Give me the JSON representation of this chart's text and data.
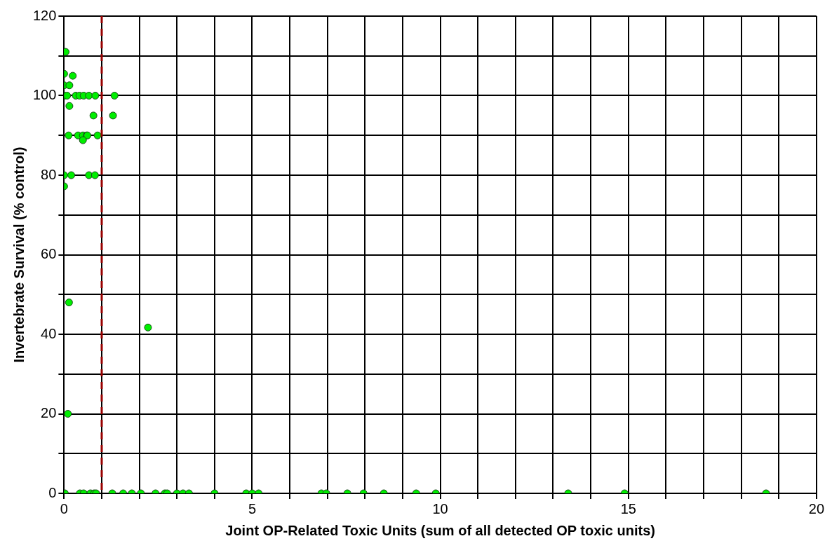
{
  "chart_data": {
    "type": "scatter",
    "xlabel": "Joint OP-Related Toxic Units (sum of all detected OP toxic units)",
    "ylabel": "Invertebrate Survival (% control)",
    "xlim": [
      0,
      20
    ],
    "ylim": [
      0,
      120
    ],
    "xticks": [
      0,
      {
        "value": 1,
        "label": null
      },
      {
        "value": 2,
        "label": null
      },
      {
        "value": 3,
        "label": null
      },
      {
        "value": 4,
        "label": null
      },
      5,
      {
        "value": 6,
        "label": null
      },
      {
        "value": 7,
        "label": null
      },
      {
        "value": 8,
        "label": null
      },
      {
        "value": 9,
        "label": null
      },
      10,
      {
        "value": 11,
        "label": null
      },
      {
        "value": 12,
        "label": null
      },
      {
        "value": 13,
        "label": null
      },
      {
        "value": 14,
        "label": null
      },
      15,
      {
        "value": 16,
        "label": null
      },
      {
        "value": 17,
        "label": null
      },
      {
        "value": 18,
        "label": null
      },
      {
        "value": 19,
        "label": null
      },
      20
    ],
    "yticks": [
      0,
      {
        "value": 10,
        "label": null
      },
      20,
      {
        "value": 30,
        "label": null
      },
      40,
      {
        "value": 50,
        "label": null
      },
      60,
      {
        "value": 70,
        "label": null
      },
      80,
      {
        "value": 90,
        "label": null
      },
      100,
      {
        "value": 110,
        "label": null
      },
      120
    ],
    "grid": true,
    "legend": false,
    "marker": "circle",
    "ref_lines": [
      {
        "axis": "x",
        "value": 1,
        "color": "#990000",
        "line_style": "dashed"
      }
    ],
    "series": [
      {
        "color": "#00ee00",
        "x": [
          0,
          0.04,
          0,
          0.23,
          0,
          0.14,
          0,
          0.08,
          0.31,
          0.41,
          0.52,
          0.66,
          0.83,
          1.34,
          0.14,
          0.78,
          1.3,
          0.12,
          0.37,
          0.5,
          0.6,
          0.62,
          0.89,
          0.5,
          0,
          0.19,
          0.66,
          0.82,
          0,
          0.13,
          2.23,
          0.1,
          0.02,
          0.42,
          0.52,
          0.7,
          0.8,
          0.85,
          1.28,
          1.57,
          1.8,
          2.04,
          2.43,
          2.68,
          2.74,
          3.0,
          3.16,
          3.32,
          4.0,
          4.84,
          5.0,
          5.17,
          6.84,
          6.97,
          7.53,
          7.96,
          8.5,
          9.36,
          9.88,
          13.4,
          14.9,
          18.66
        ],
        "values": [
          111,
          111,
          105.5,
          105,
          102.6,
          102.6,
          100,
          100,
          100,
          100,
          100,
          100,
          100,
          100,
          97.4,
          95,
          95,
          90,
          90,
          90,
          90,
          90,
          90,
          88.8,
          80,
          80,
          80,
          80,
          77.2,
          48,
          41.7,
          20,
          0,
          0,
          0,
          0,
          0,
          0,
          0,
          0,
          0,
          0,
          0,
          0,
          0,
          0,
          0,
          0,
          0,
          0,
          0,
          0,
          0,
          0,
          0,
          0,
          0,
          0,
          0,
          0,
          0,
          0
        ]
      }
    ]
  }
}
